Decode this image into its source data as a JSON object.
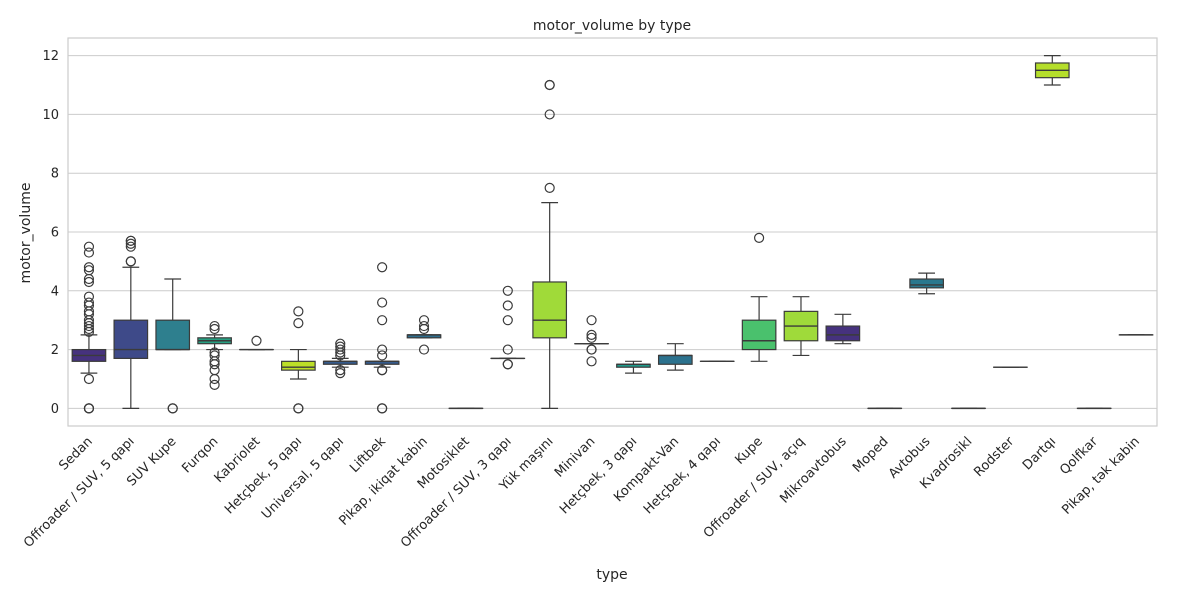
{
  "chart_data": {
    "type": "box",
    "title": "motor_volume by type",
    "xlabel": "type",
    "ylabel": "motor_volume",
    "ylim": [
      -0.6,
      12.6
    ],
    "yticks": [
      0,
      2,
      4,
      6,
      8,
      10,
      12
    ],
    "grid": "horizontal",
    "legend": "none",
    "palette": "viridis",
    "boxes": [
      {
        "category": "Sedan",
        "color": "#46327e",
        "whisker_low": 1.2,
        "q1": 1.6,
        "median": 1.8,
        "q3": 2.0,
        "whisker_high": 2.5,
        "outliers": [
          0,
          0,
          0,
          1.0,
          2.6,
          2.7,
          2.8,
          2.9,
          3.0,
          3.2,
          3.3,
          3.5,
          3.6,
          3.8,
          4.3,
          4.4,
          4.7,
          4.8,
          5.3,
          5.5
        ]
      },
      {
        "category": "Offroader / SUV, 5 qapı",
        "color": "#3e4a89",
        "whisker_low": 0.0,
        "q1": 1.7,
        "median": 2.0,
        "q3": 3.0,
        "whisker_high": 4.8,
        "outliers": [
          5.0,
          5.0,
          5.5,
          5.6,
          5.7,
          5.7
        ]
      },
      {
        "category": "SUV Kupe",
        "color": "#2e7f8e",
        "whisker_low": 2.0,
        "q1": 2.0,
        "median": 2.0,
        "q3": 3.0,
        "whisker_high": 4.4,
        "outliers": [
          0,
          0
        ]
      },
      {
        "category": "Furqon",
        "color": "#27a082",
        "whisker_low": 2.0,
        "q1": 2.2,
        "median": 2.3,
        "q3": 2.4,
        "whisker_high": 2.5,
        "outliers": [
          0.8,
          1.0,
          1.3,
          1.5,
          1.6,
          1.8,
          1.9,
          2.7,
          2.8
        ]
      },
      {
        "category": "Kabriolet",
        "color": "#bcdf27",
        "whisker_low": 2.0,
        "q1": 2.0,
        "median": 2.0,
        "q3": 2.0,
        "whisker_high": 2.0,
        "outliers": [
          2.3
        ]
      },
      {
        "category": "Hetçbek, 5 qapı",
        "color": "#bcdf27",
        "whisker_low": 1.0,
        "q1": 1.3,
        "median": 1.4,
        "q3": 1.6,
        "whisker_high": 2.0,
        "outliers": [
          0,
          0,
          2.9,
          3.3
        ]
      },
      {
        "category": "Universal, 5 qapı",
        "color": "#365c8d",
        "whisker_low": 1.4,
        "q1": 1.5,
        "median": 1.6,
        "q3": 1.6,
        "whisker_high": 1.7,
        "outliers": [
          1.2,
          1.3,
          1.8,
          1.9,
          2.0,
          2.1,
          2.2
        ]
      },
      {
        "category": "Liftbek",
        "color": "#365c8d",
        "whisker_low": 1.4,
        "q1": 1.5,
        "median": 1.6,
        "q3": 1.6,
        "whisker_high": 1.6,
        "outliers": [
          0,
          0,
          1.3,
          1.3,
          1.8,
          2.0,
          3.0,
          3.6,
          4.8
        ]
      },
      {
        "category": "Pikap, ikiqat kabin",
        "color": "#2e6e8e",
        "whisker_low": 2.4,
        "q1": 2.4,
        "median": 2.5,
        "q3": 2.5,
        "whisker_high": 2.5,
        "outliers": [
          2.0,
          2.7,
          2.8,
          3.0
        ]
      },
      {
        "category": "Motosiklet",
        "color": "#471063",
        "whisker_low": 0,
        "q1": 0,
        "median": 0,
        "q3": 0,
        "whisker_high": 0,
        "outliers": []
      },
      {
        "category": "Offroader / SUV, 3 qapı",
        "color": "#277f8e",
        "whisker_low": 1.7,
        "q1": 1.7,
        "median": 1.7,
        "q3": 1.7,
        "whisker_high": 1.7,
        "outliers": [
          1.5,
          1.5,
          2.0,
          3.0,
          3.5,
          4.0
        ]
      },
      {
        "category": "Yük maşını",
        "color": "#a0da39",
        "whisker_low": 0.0,
        "q1": 2.4,
        "median": 3.0,
        "q3": 4.3,
        "whisker_high": 7.0,
        "outliers": [
          7.5,
          10.0,
          11.0,
          11.0
        ]
      },
      {
        "category": "Minivan",
        "color": "#25858e",
        "whisker_low": 2.2,
        "q1": 2.2,
        "median": 2.2,
        "q3": 2.2,
        "whisker_high": 2.2,
        "outliers": [
          1.6,
          2.0,
          2.0,
          2.4,
          2.5,
          3.0
        ]
      },
      {
        "category": "Hetçbek, 3 qapı",
        "color": "#1f9a8a",
        "whisker_low": 1.2,
        "q1": 1.4,
        "median": 1.5,
        "q3": 1.5,
        "whisker_high": 1.6,
        "outliers": []
      },
      {
        "category": "Kompakt-Van",
        "color": "#2c728e",
        "whisker_low": 1.3,
        "q1": 1.5,
        "median": 1.8,
        "q3": 1.8,
        "whisker_high": 2.2,
        "outliers": []
      },
      {
        "category": "Hetçbek, 4 qapı",
        "color": "#4ac16d",
        "whisker_low": 1.6,
        "q1": 1.6,
        "median": 1.6,
        "q3": 1.6,
        "whisker_high": 1.6,
        "outliers": []
      },
      {
        "category": "Kupe",
        "color": "#4ac16d",
        "whisker_low": 1.6,
        "q1": 2.0,
        "median": 2.3,
        "q3": 3.0,
        "whisker_high": 3.8,
        "outliers": [
          5.8
        ]
      },
      {
        "category": "Offroader / SUV, açıq",
        "color": "#9fda3a",
        "whisker_low": 1.8,
        "q1": 2.3,
        "median": 2.8,
        "q3": 3.3,
        "whisker_high": 3.8,
        "outliers": []
      },
      {
        "category": "Mikroavtobus",
        "color": "#46327e",
        "whisker_low": 2.2,
        "q1": 2.3,
        "median": 2.5,
        "q3": 2.8,
        "whisker_high": 3.2,
        "outliers": []
      },
      {
        "category": "Moped",
        "color": "#48186a",
        "whisker_low": 0,
        "q1": 0,
        "median": 0,
        "q3": 0,
        "whisker_high": 0,
        "outliers": []
      },
      {
        "category": "Avtobus",
        "color": "#2a788e",
        "whisker_low": 3.9,
        "q1": 4.1,
        "median": 4.2,
        "q3": 4.4,
        "whisker_high": 4.6,
        "outliers": []
      },
      {
        "category": "Kvadrosikl",
        "color": "#46327e",
        "whisker_low": 0,
        "q1": 0,
        "median": 0,
        "q3": 0,
        "whisker_high": 0,
        "outliers": []
      },
      {
        "category": "Rodster",
        "color": "#2a788e",
        "whisker_low": 1.4,
        "q1": 1.4,
        "median": 1.4,
        "q3": 1.4,
        "whisker_high": 1.4,
        "outliers": []
      },
      {
        "category": "Dartqı",
        "color": "#b5de2b",
        "whisker_low": 11.0,
        "q1": 11.25,
        "median": 11.5,
        "q3": 11.75,
        "whisker_high": 12.0,
        "outliers": []
      },
      {
        "category": "Qolfkar",
        "color": "#482173",
        "whisker_low": 0,
        "q1": 0,
        "median": 0,
        "q3": 0,
        "whisker_high": 0,
        "outliers": []
      },
      {
        "category": "Pikap, tək kabin",
        "color": "#2a788e",
        "whisker_low": 2.5,
        "q1": 2.5,
        "median": 2.5,
        "q3": 2.5,
        "whisker_high": 2.5,
        "outliers": []
      }
    ]
  }
}
